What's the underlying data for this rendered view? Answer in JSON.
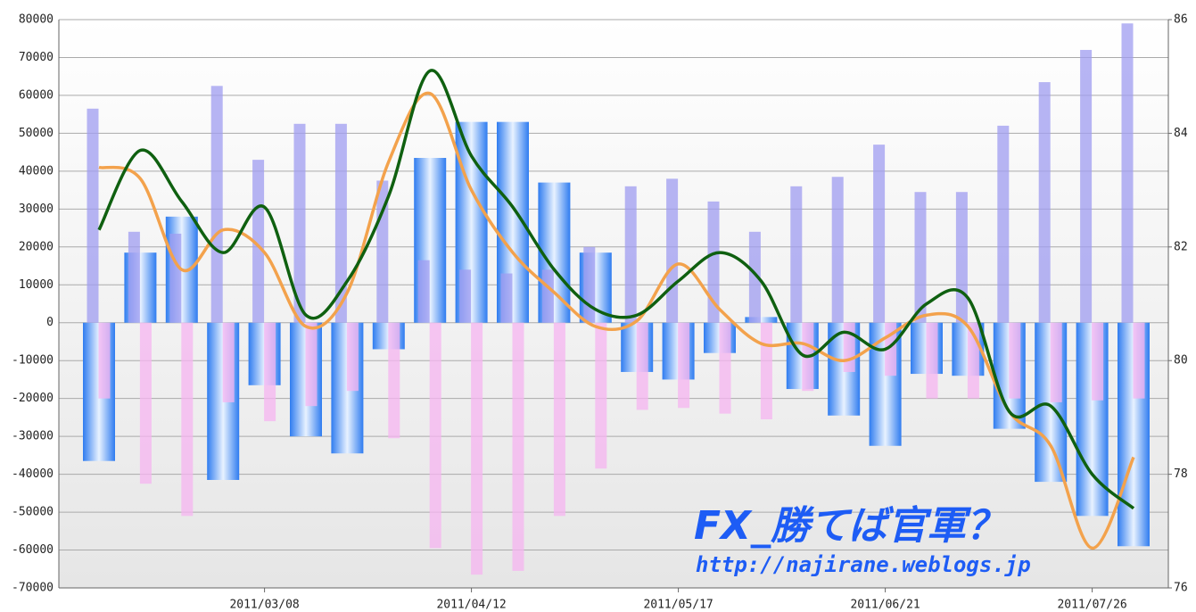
{
  "chart_data": {
    "type": "combo",
    "categories": [
      null,
      null,
      null,
      null,
      "2011/03/08",
      null,
      null,
      null,
      null,
      "2011/04/12",
      null,
      null,
      null,
      null,
      "2011/05/17",
      null,
      null,
      null,
      null,
      "2011/06/21",
      null,
      null,
      null,
      null,
      "2011/07/26",
      null
    ],
    "series": [
      {
        "type": "bar",
        "color": "#2f7cf0",
        "values": [
          -36500,
          18500,
          28000,
          -41500,
          -16500,
          -30000,
          -34500,
          -7000,
          43500,
          53000,
          53000,
          37000,
          18500,
          -13000,
          -15000,
          -8000,
          1500,
          -17500,
          -24500,
          -32500,
          -13500,
          -14000,
          -28000,
          -42000,
          -51000,
          -59000
        ]
      },
      {
        "type": "bar",
        "color": "#9f9cf0",
        "values": [
          56500,
          24000,
          23500,
          62500,
          43000,
          52500,
          52500,
          37500,
          16500,
          14000,
          13000,
          14000,
          20000,
          36000,
          38000,
          32000,
          24000,
          36000,
          38500,
          47000,
          34500,
          34500,
          52000,
          63500,
          72000,
          79000
        ]
      },
      {
        "type": "bar",
        "color": "#f6b4f0",
        "values": [
          -20000,
          -42500,
          -51000,
          -21000,
          -26000,
          -22000,
          -18000,
          -30500,
          -59500,
          -66500,
          -65500,
          -51000,
          -38500,
          -23000,
          -22500,
          -24000,
          -25500,
          -18000,
          -13000,
          -14000,
          -20000,
          -20000,
          -20000,
          -21000,
          -20500,
          -20000
        ]
      },
      {
        "type": "line",
        "axis": "y2",
        "color": "#0f6010",
        "values": [
          82.3,
          83.7,
          82.8,
          81.9,
          82.7,
          80.8,
          81.4,
          82.9,
          85.1,
          83.6,
          82.7,
          81.6,
          80.9,
          80.8,
          81.4,
          81.9,
          81.4,
          80.1,
          80.5,
          80.2,
          81.0,
          81.1,
          79.1,
          79.2,
          78.0,
          77.4
        ]
      },
      {
        "type": "line",
        "axis": "y2",
        "color": "#f3a24c",
        "values": [
          83.4,
          83.2,
          81.6,
          82.3,
          81.9,
          80.6,
          81.2,
          83.5,
          84.7,
          83.0,
          81.9,
          81.2,
          80.6,
          80.7,
          81.7,
          80.9,
          80.3,
          80.3,
          80.0,
          80.4,
          80.8,
          80.6,
          79.1,
          78.5,
          76.7,
          78.3
        ]
      }
    ],
    "ylim": [
      -70000,
      80000
    ],
    "yticks": [
      -70000,
      -60000,
      -50000,
      -40000,
      -30000,
      -20000,
      -10000,
      0,
      10000,
      20000,
      30000,
      40000,
      50000,
      60000,
      70000,
      80000
    ],
    "y2lim": [
      76,
      86
    ],
    "y2ticks": [
      76,
      78,
      80,
      82,
      84,
      86
    ],
    "grid": true,
    "watermark": {
      "title": "FX_勝てば官軍？",
      "url": "http://najirane.weblogs.jp"
    }
  }
}
